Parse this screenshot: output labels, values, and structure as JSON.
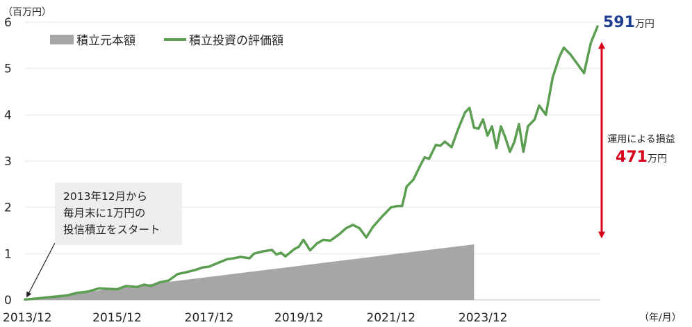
{
  "chart_data": {
    "type": "area",
    "y_unit": "（百万円）",
    "x_unit": "（年/月）",
    "x_ticks": [
      "2013/12",
      "2015/12",
      "2017/12",
      "2019/12",
      "2021/12",
      "2023/12"
    ],
    "y_ticks": [
      "0",
      "1",
      "2",
      "3",
      "4",
      "5",
      "6"
    ],
    "ylim": [
      0,
      6
    ],
    "grid": true,
    "legend_position": "top-left",
    "legend": [
      "積立元本額",
      "積立投資の評価額"
    ],
    "colors": {
      "principal": "#a6a6a6",
      "valuation": "#5b9e52",
      "arrow": "#d9001b",
      "final": "#1f3f8f"
    },
    "series": [
      {
        "name": "積立元本額",
        "type": "area",
        "values": [
          [
            2013.95,
            0.01
          ],
          [
            2023.95,
            1.2
          ]
        ]
      },
      {
        "name": "積立投資の評価額",
        "type": "line",
        "values": [
          [
            2013.95,
            0.01
          ],
          [
            2014.2,
            0.03
          ],
          [
            2014.5,
            0.06
          ],
          [
            2014.9,
            0.1
          ],
          [
            2015.1,
            0.15
          ],
          [
            2015.35,
            0.18
          ],
          [
            2015.6,
            0.25
          ],
          [
            2015.8,
            0.24
          ],
          [
            2016.0,
            0.23
          ],
          [
            2016.2,
            0.3
          ],
          [
            2016.45,
            0.28
          ],
          [
            2016.6,
            0.33
          ],
          [
            2016.75,
            0.3
          ],
          [
            2016.95,
            0.38
          ],
          [
            2017.15,
            0.42
          ],
          [
            2017.35,
            0.56
          ],
          [
            2017.55,
            0.6
          ],
          [
            2017.75,
            0.65
          ],
          [
            2017.9,
            0.7
          ],
          [
            2018.05,
            0.72
          ],
          [
            2018.25,
            0.8
          ],
          [
            2018.45,
            0.88
          ],
          [
            2018.6,
            0.9
          ],
          [
            2018.75,
            0.93
          ],
          [
            2018.95,
            0.9
          ],
          [
            2019.05,
            1.0
          ],
          [
            2019.25,
            1.05
          ],
          [
            2019.45,
            1.08
          ],
          [
            2019.55,
            0.98
          ],
          [
            2019.65,
            1.02
          ],
          [
            2019.75,
            0.94
          ],
          [
            2019.95,
            1.1
          ],
          [
            2020.05,
            1.15
          ],
          [
            2020.15,
            1.3
          ],
          [
            2020.3,
            1.07
          ],
          [
            2020.45,
            1.22
          ],
          [
            2020.6,
            1.3
          ],
          [
            2020.75,
            1.28
          ],
          [
            2020.95,
            1.42
          ],
          [
            2021.1,
            1.55
          ],
          [
            2021.25,
            1.62
          ],
          [
            2021.4,
            1.55
          ],
          [
            2021.55,
            1.35
          ],
          [
            2021.7,
            1.58
          ],
          [
            2021.9,
            1.8
          ],
          [
            2022.1,
            2.0
          ],
          [
            2022.25,
            2.03
          ],
          [
            2022.35,
            2.03
          ],
          [
            2022.45,
            2.45
          ],
          [
            2022.6,
            2.6
          ],
          [
            2022.75,
            2.9
          ],
          [
            2022.85,
            3.08
          ],
          [
            2022.95,
            3.05
          ],
          [
            2023.1,
            3.35
          ],
          [
            2023.2,
            3.33
          ],
          [
            2023.3,
            3.42
          ],
          [
            2023.45,
            3.3
          ],
          [
            2023.6,
            3.7
          ],
          [
            2023.75,
            4.05
          ],
          [
            2023.85,
            4.15
          ],
          [
            2023.95,
            3.72
          ],
          [
            2024.05,
            3.7
          ],
          [
            2024.15,
            3.9
          ],
          [
            2024.25,
            3.55
          ],
          [
            2024.35,
            3.75
          ],
          [
            2024.45,
            3.28
          ],
          [
            2024.55,
            3.75
          ],
          [
            2024.65,
            3.5
          ],
          [
            2024.75,
            3.2
          ],
          [
            2024.85,
            3.42
          ],
          [
            2024.95,
            3.8
          ],
          [
            2025.05,
            3.2
          ],
          [
            2025.15,
            3.75
          ],
          [
            2025.3,
            3.9
          ],
          [
            2025.4,
            4.2
          ],
          [
            2025.55,
            4.0
          ],
          [
            2025.7,
            4.8
          ],
          [
            2025.85,
            5.25
          ],
          [
            2025.95,
            5.45
          ],
          [
            2026.1,
            5.3
          ],
          [
            2026.25,
            5.1
          ],
          [
            2026.4,
            4.9
          ],
          [
            2026.55,
            5.55
          ],
          [
            2026.7,
            5.91
          ]
        ]
      }
    ],
    "annotation": {
      "lines": [
        "2013年12月から",
        "毎月末に1万円の",
        "投信積立をスタート"
      ]
    },
    "final_value": {
      "number": "591",
      "unit": "万円"
    },
    "gain": {
      "label": "運用による損益",
      "number": "471",
      "unit": "万円"
    },
    "principal_total": {
      "number": "120",
      "unit": "万円"
    }
  }
}
